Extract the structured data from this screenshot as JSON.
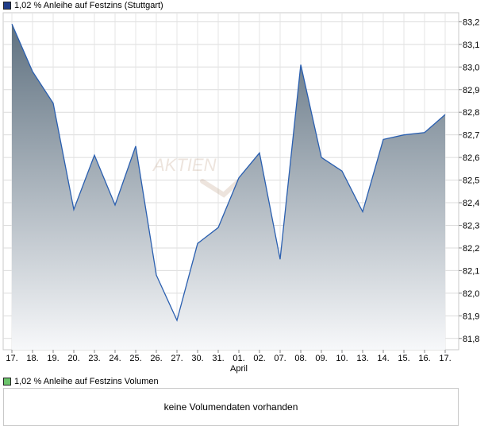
{
  "legend": {
    "price_label": "1,02 % Anleihe auf Festzins (Stuttgart)",
    "price_color": "#1f3c88",
    "volume_label": "1,02 % Anleihe auf Festzins Volumen",
    "volume_color": "#6cc46c"
  },
  "volume": {
    "message": "keine Volumendaten vorhanden"
  },
  "watermark": {
    "text": "AKTIEN"
  },
  "chart_data": {
    "type": "area",
    "title": "",
    "xlabel": "",
    "ylabel": "",
    "month_label": "April",
    "month_label_at": "01.",
    "categories": [
      "17.",
      "18.",
      "19.",
      "20.",
      "23.",
      "24.",
      "25.",
      "26.",
      "27.",
      "30.",
      "31.",
      "01.",
      "02.",
      "07.",
      "08.",
      "09.",
      "10.",
      "13.",
      "14.",
      "15.",
      "16.",
      "17."
    ],
    "series": [
      {
        "values": [
          83.19,
          82.98,
          82.84,
          82.37,
          82.61,
          82.39,
          82.65,
          82.08,
          81.88,
          82.22,
          82.29,
          82.51,
          82.62,
          82.15,
          83.01,
          82.6,
          82.54,
          82.36,
          82.68,
          82.7,
          82.71,
          82.79
        ]
      }
    ],
    "yticks": [
      "81,8",
      "81,9",
      "82,0",
      "82,1",
      "82,2",
      "82,3",
      "82,4",
      "82,5",
      "82,6",
      "82,7",
      "82,8",
      "82,9",
      "83,0",
      "83,1",
      "83,2"
    ],
    "ylim": [
      81.75,
      83.24
    ],
    "y_axis_position": "right",
    "grid": true,
    "line_color": "#2a5fb0",
    "fill_top_color": "#5f7180",
    "fill_bottom_color": "#f7f8fa"
  }
}
